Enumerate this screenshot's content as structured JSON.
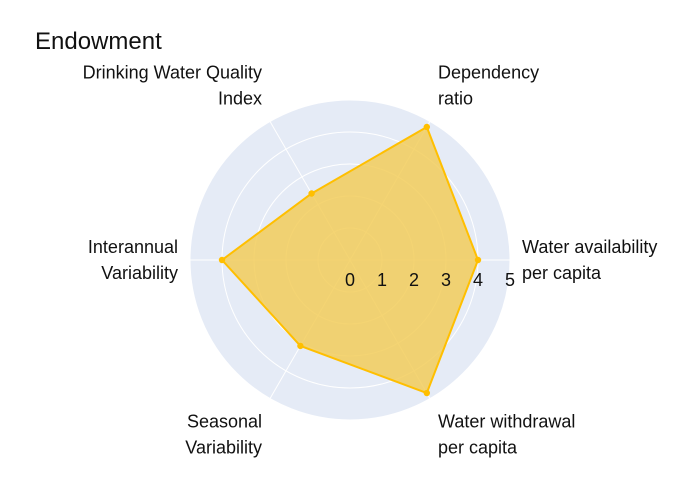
{
  "chart_data": {
    "type": "radar",
    "title": "Endowment",
    "axes": [
      {
        "lines": [
          "Water availability",
          "per capita"
        ],
        "value": 4.0
      },
      {
        "lines": [
          "Dependency",
          "ratio"
        ],
        "value": 4.8
      },
      {
        "lines": [
          "Drinking Water Quality",
          "Index"
        ],
        "value": 2.4
      },
      {
        "lines": [
          "Interannual",
          "Variability"
        ],
        "value": 4.0
      },
      {
        "lines": [
          "Seasonal",
          "Variability"
        ],
        "value": 3.1
      },
      {
        "lines": [
          "Water withdrawal",
          "per capita"
        ],
        "value": 4.8
      }
    ],
    "radial_range": [
      0,
      5
    ],
    "radial_ticks": [
      0,
      1,
      2,
      3,
      4,
      5
    ],
    "grid": true,
    "colors": {
      "fill": "#f2cc5a",
      "line": "#ffbf00",
      "background": "#e5ebf6",
      "grid": "#ffffff"
    }
  }
}
